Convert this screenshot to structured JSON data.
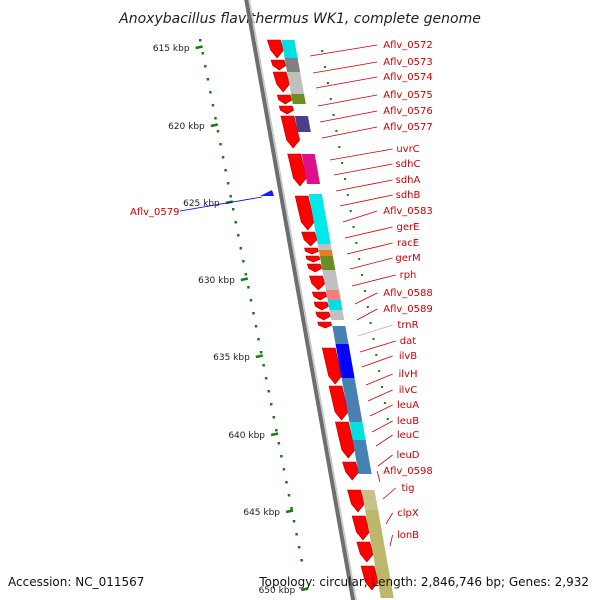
{
  "title": "Anoxybacillus flavithermus WK1, complete genome",
  "footer": {
    "accession": "Accession: NC_011567",
    "topology": "Topology: circular; Length: 2,846,746 bp; Genes: 2,932"
  },
  "colors": {
    "gene_red": "#ff0000",
    "label_red": "#cc0000",
    "label_blue": "#0000cc",
    "label_pink": "#e89ab8",
    "tick_green": "#1a7a1a",
    "backbone": "#888888"
  },
  "ticks": [
    {
      "label": "615 kbp"
    },
    {
      "label": "620 kbp"
    },
    {
      "label": "625 kbp"
    },
    {
      "label": "630 kbp"
    },
    {
      "label": "635 kbp"
    },
    {
      "label": "640 kbp"
    },
    {
      "label": "645 kbp"
    },
    {
      "label": "650 kbp"
    }
  ],
  "left_labels": [
    {
      "name": "Aflv_0579"
    }
  ],
  "right_labels": [
    {
      "name": "Aflv_0572"
    },
    {
      "name": "Aflv_0573"
    },
    {
      "name": "Aflv_0574"
    },
    {
      "name": "Aflv_0575"
    },
    {
      "name": "Aflv_0576"
    },
    {
      "name": "Aflv_0577"
    },
    {
      "name": "uvrC"
    },
    {
      "name": "sdhC"
    },
    {
      "name": "sdhA"
    },
    {
      "name": "sdhB"
    },
    {
      "name": "Aflv_0583"
    },
    {
      "name": "gerE"
    },
    {
      "name": "racE"
    },
    {
      "name": "gerM"
    },
    {
      "name": "rph"
    },
    {
      "name": "Aflv_0588"
    },
    {
      "name": "Aflv_0589"
    },
    {
      "name": "trnR"
    },
    {
      "name": "dat"
    },
    {
      "name": "ilvB"
    },
    {
      "name": "ilvH"
    },
    {
      "name": "ilvC"
    },
    {
      "name": "leuA"
    },
    {
      "name": "leuB"
    },
    {
      "name": "leuC"
    },
    {
      "name": "leuD"
    },
    {
      "name": "Aflv_0598"
    },
    {
      "name": "tig"
    },
    {
      "name": "clpX"
    },
    {
      "name": "lonB"
    }
  ]
}
